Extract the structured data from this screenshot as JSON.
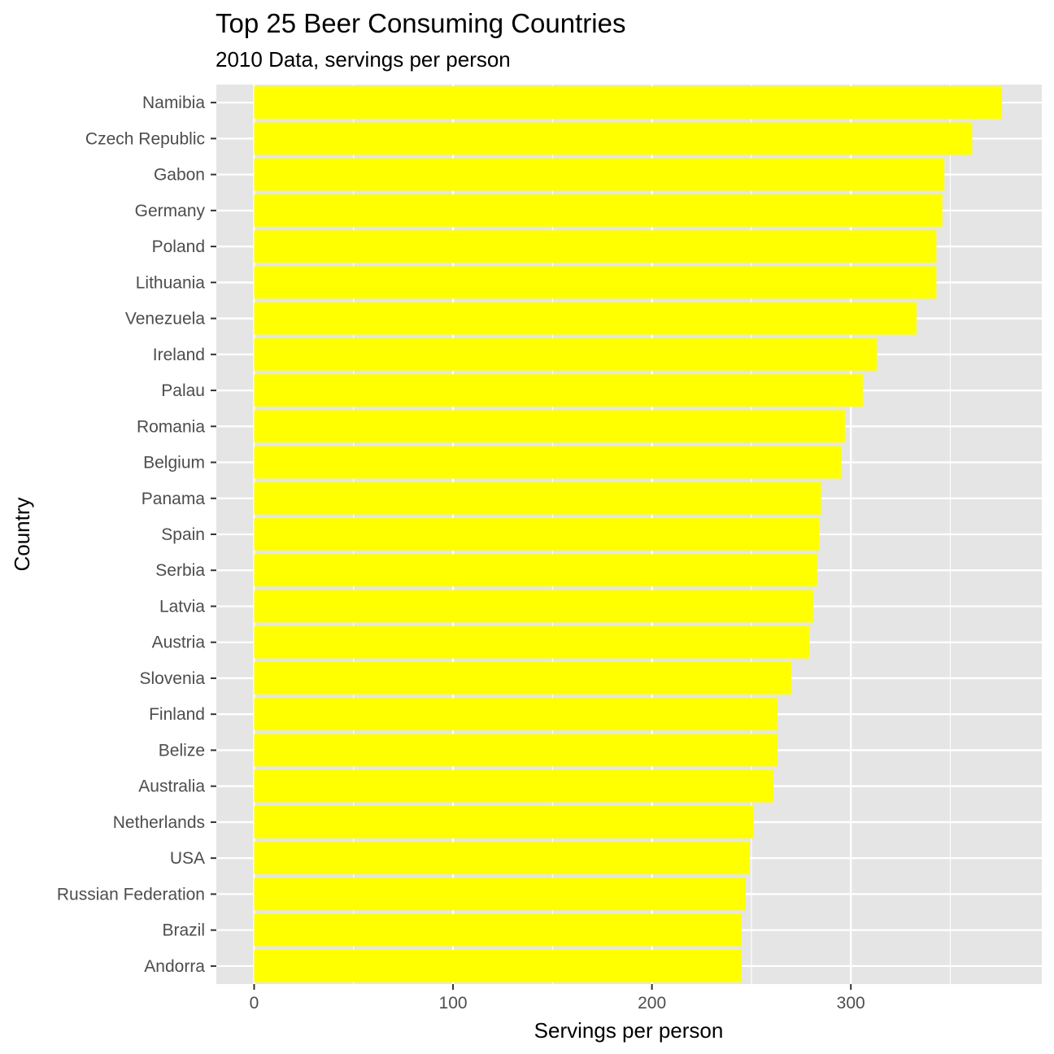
{
  "chart_data": {
    "type": "bar",
    "orientation": "horizontal",
    "title": "Top 25 Beer Consuming Countries",
    "subtitle": "2010 Data, servings per person",
    "xlabel": "Servings per person",
    "ylabel": "Country",
    "xlim": [
      -19,
      396
    ],
    "x_ticks": [
      0,
      100,
      200,
      300
    ],
    "x_tick_labels": [
      "0",
      "100",
      "200",
      "300"
    ],
    "x_minor_ticks": [
      50,
      150,
      250,
      350
    ],
    "grid": true,
    "legend": "none",
    "categories": [
      "Namibia",
      "Czech Republic",
      "Gabon",
      "Germany",
      "Poland",
      "Lithuania",
      "Venezuela",
      "Ireland",
      "Palau",
      "Romania",
      "Belgium",
      "Panama",
      "Spain",
      "Serbia",
      "Latvia",
      "Austria",
      "Slovenia",
      "Finland",
      "Belize",
      "Australia",
      "Netherlands",
      "USA",
      "Russian Federation",
      "Brazil",
      "Andorra"
    ],
    "values": [
      376,
      361,
      347,
      346,
      343,
      343,
      333,
      313,
      306,
      297,
      295,
      285,
      284,
      283,
      281,
      279,
      270,
      263,
      263,
      261,
      251,
      249,
      247,
      245,
      245
    ]
  },
  "colors": {
    "bar_fill": "#ffff00",
    "panel_background": "#e5e5e5",
    "grid_line": "#ffffff",
    "tick_label": "#4d4d4d",
    "tick_mark": "#333333"
  }
}
